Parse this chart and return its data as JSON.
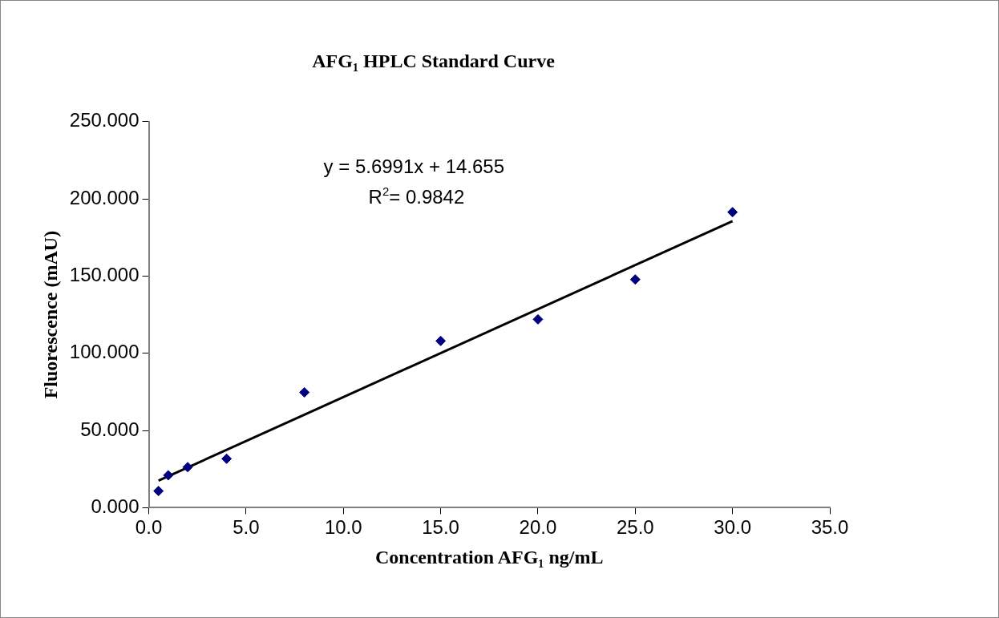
{
  "chart_data": {
    "type": "scatter",
    "title": "AFG₁ HPLC Standard Curve",
    "xlabel": "Concentration AFG₁ ng/mL",
    "ylabel": "Fluorescence (mAU)",
    "xlim": [
      0,
      35
    ],
    "xticks": [
      {
        "value": 0,
        "label": "0.0"
      },
      {
        "value": 5,
        "label": "5.0"
      },
      {
        "value": 10,
        "label": "10.0"
      },
      {
        "value": 15,
        "label": "15.0"
      },
      {
        "value": 20,
        "label": "20.0"
      },
      {
        "value": 25,
        "label": "25.0"
      },
      {
        "value": 30,
        "label": "30.0"
      },
      {
        "value": 35,
        "label": "35.0"
      }
    ],
    "ylim": [
      0,
      250
    ],
    "yticks": [
      {
        "value": 0,
        "label": "0.000"
      },
      {
        "value": 50,
        "label": "50.000"
      },
      {
        "value": 100,
        "label": "100.000"
      },
      {
        "value": 150,
        "label": "150.000"
      },
      {
        "value": 200,
        "label": "200.000"
      },
      {
        "value": 250,
        "label": "250.000"
      }
    ],
    "series": [
      {
        "color": "#000080",
        "marker": "diamond",
        "x": [
          0.5,
          1,
          2,
          4,
          8,
          15,
          20,
          25,
          30
        ],
        "values": [
          10.8,
          21,
          26.3,
          31.7,
          74.7,
          108,
          122,
          147.8,
          191.4
        ]
      },
      {
        "type": "line",
        "color": "#000000",
        "marker": "none",
        "line_style": "solid",
        "x": [
          0.5,
          30
        ],
        "values": [
          17.5,
          185.6
        ]
      }
    ],
    "annotations": [
      "y = 5.6991x + 14.655",
      "R$^{2}$= 0.9842"
    ],
    "grid": false,
    "legend": false
  }
}
